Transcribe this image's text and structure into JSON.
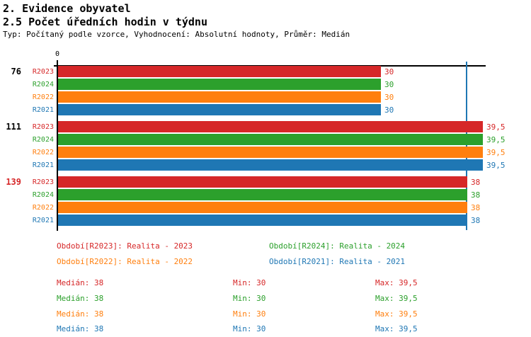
{
  "header": {
    "title_line1": "2. Evidence obyvatel",
    "title_line2": "2.5 Počet úředních hodin v týdnu",
    "subtitle": "Typ: Počítaný podle vzorce, Vyhodnocení: Absolutní hodnoty, Průměr: Medián"
  },
  "colors": {
    "R2023": "#d62728",
    "R2024": "#2ca02c",
    "R2022": "#ff7f0e",
    "R2021": "#1f77b4",
    "axis": "#000000",
    "median_line": "#1f77b4",
    "highlight_category": "#d62728"
  },
  "chart_data": {
    "type": "bar",
    "orientation": "horizontal",
    "title": "2.5 Počet úředních hodin v týdnu",
    "origin_tick_label": "0",
    "xlim": [
      0,
      39.8
    ],
    "grid": false,
    "median_reference_line": {
      "value": 38,
      "color": "#1f77b4"
    },
    "categories": [
      "76",
      "111",
      "139"
    ],
    "series_order": [
      "R2023",
      "R2024",
      "R2022",
      "R2021"
    ],
    "series": [
      {
        "name": "R2023",
        "color": "#d62728",
        "values": [
          30,
          39.5,
          38
        ]
      },
      {
        "name": "R2024",
        "color": "#2ca02c",
        "values": [
          30,
          39.5,
          38
        ]
      },
      {
        "name": "R2022",
        "color": "#ff7f0e",
        "values": [
          30,
          39.5,
          38
        ]
      },
      {
        "name": "R2021",
        "color": "#1f77b4",
        "values": [
          30,
          39.5,
          38
        ]
      }
    ],
    "groups": [
      {
        "label": "76",
        "label_color": "#000000",
        "bars": [
          {
            "series": "R2023",
            "value": 30,
            "display": "30"
          },
          {
            "series": "R2024",
            "value": 30,
            "display": "30"
          },
          {
            "series": "R2022",
            "value": 30,
            "display": "30"
          },
          {
            "series": "R2021",
            "value": 30,
            "display": "30"
          }
        ]
      },
      {
        "label": "111",
        "label_color": "#000000",
        "bars": [
          {
            "series": "R2023",
            "value": 39.5,
            "display": "39,5"
          },
          {
            "series": "R2024",
            "value": 39.5,
            "display": "39,5"
          },
          {
            "series": "R2022",
            "value": 39.5,
            "display": "39,5"
          },
          {
            "series": "R2021",
            "value": 39.5,
            "display": "39,5"
          }
        ]
      },
      {
        "label": "139",
        "label_color": "#d62728",
        "bars": [
          {
            "series": "R2023",
            "value": 38,
            "display": "38"
          },
          {
            "series": "R2024",
            "value": 38,
            "display": "38"
          },
          {
            "series": "R2022",
            "value": 38,
            "display": "38"
          },
          {
            "series": "R2021",
            "value": 38,
            "display": "38"
          }
        ]
      }
    ]
  },
  "legend": {
    "items": [
      {
        "series": "R2023",
        "text": "Období[R2023]: Realita - 2023",
        "col": 0,
        "row": 0
      },
      {
        "series": "R2024",
        "text": "Období[R2024]: Realita - 2024",
        "col": 1,
        "row": 0
      },
      {
        "series": "R2022",
        "text": "Období[R2022]: Realita - 2022",
        "col": 0,
        "row": 1
      },
      {
        "series": "R2021",
        "text": "Období[R2021]: Realita - 2021",
        "col": 1,
        "row": 1
      }
    ]
  },
  "stats": {
    "rows": [
      {
        "series": "R2023",
        "median": "Medián: 38",
        "min": "Min: 30",
        "max": "Max: 39,5"
      },
      {
        "series": "R2024",
        "median": "Medián: 38",
        "min": "Min: 30",
        "max": "Max: 39,5"
      },
      {
        "series": "R2022",
        "median": "Medián: 38",
        "min": "Min: 30",
        "max": "Max: 39,5"
      },
      {
        "series": "R2021",
        "median": "Medián: 38",
        "min": "Min: 30",
        "max": "Max: 39,5"
      }
    ]
  }
}
